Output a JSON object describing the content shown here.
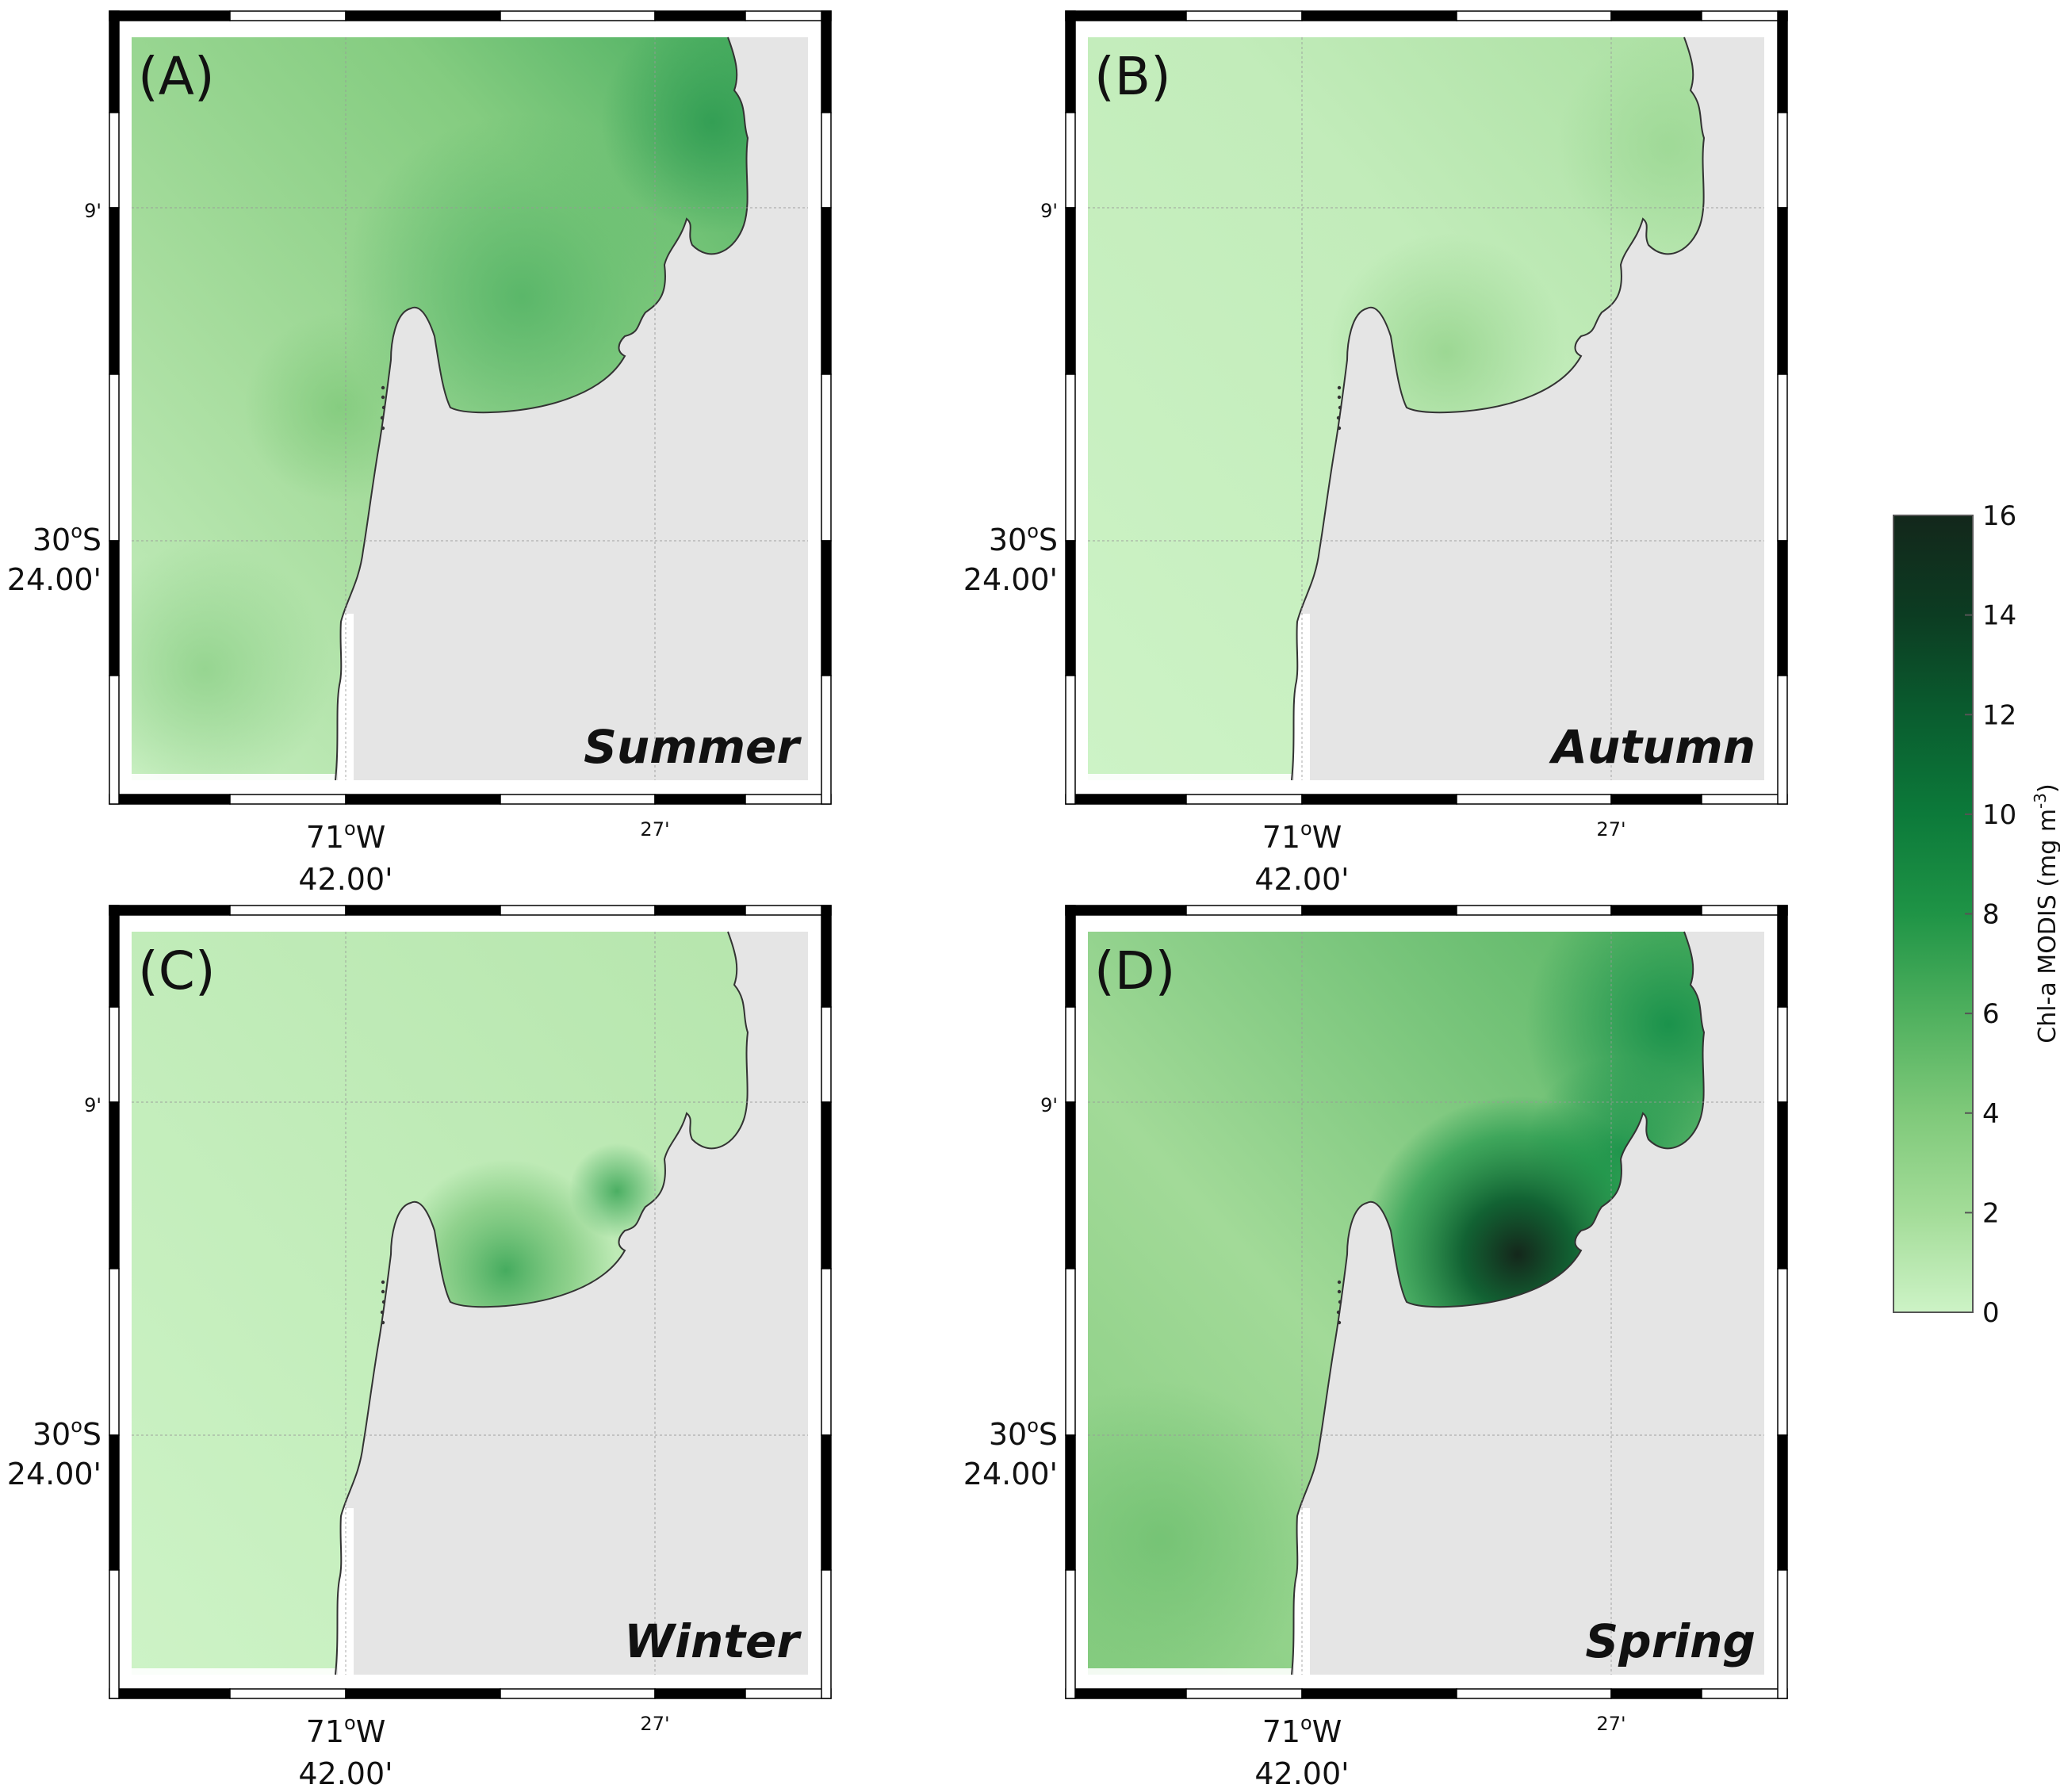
{
  "panels": [
    {
      "id": "A",
      "letter": "(A)",
      "season": "Summer",
      "chl_level": "moderate"
    },
    {
      "id": "B",
      "letter": "(B)",
      "season": "Autumn",
      "chl_level": "low"
    },
    {
      "id": "C",
      "letter": "(C)",
      "season": "Winter",
      "chl_level": "low"
    },
    {
      "id": "D",
      "letter": "(D)",
      "season": "Spring",
      "chl_level": "high"
    }
  ],
  "axes": {
    "lat_main_deg": "30",
    "lat_main_hem": "S",
    "lat_main_min": "24.00'",
    "lat_minor": "9'",
    "lon_main_deg": "71",
    "lon_main_hem": "W",
    "lon_main_min": "42.00'",
    "lon_minor": "27'"
  },
  "colorbar": {
    "title": "Chl-a MODIS (mg m",
    "title_exp": "-3",
    "title_close": ")",
    "min": 0,
    "max": 16,
    "ticks": [
      "0",
      "2",
      "4",
      "6",
      "8",
      "10",
      "12",
      "14",
      "16"
    ],
    "colors": [
      "#cdf3c6",
      "#a3dc98",
      "#7fc97a",
      "#4fb05e",
      "#1f9446",
      "#0c7a3a",
      "#0a5d2f",
      "#0c3c22",
      "#13271b"
    ]
  },
  "colors": {
    "land": "#e5e5e5",
    "frame": "#000000"
  }
}
